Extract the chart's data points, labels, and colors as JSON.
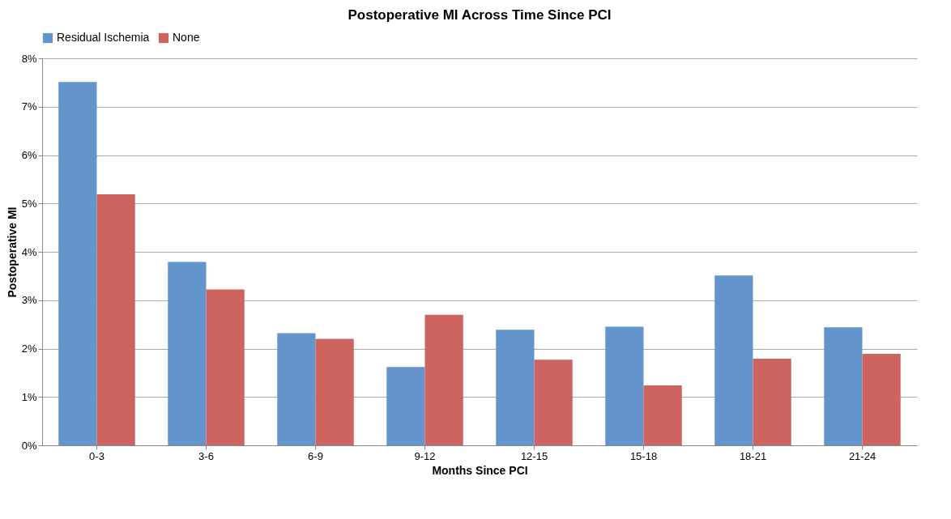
{
  "chart_data": {
    "type": "bar",
    "title": "Postoperative MI Across Time Since PCI",
    "xlabel": "Months Since PCI",
    "ylabel": "Postoperative MI",
    "categories": [
      "0-3",
      "3-6",
      "6-9",
      "9-12",
      "12-15",
      "15-18",
      "18-21",
      "21-24"
    ],
    "series": [
      {
        "name": "Residual Ischemia",
        "color": "#6394cc",
        "values": [
          7.51,
          3.79,
          2.32,
          1.62,
          2.39,
          2.45,
          3.51,
          2.44
        ]
      },
      {
        "name": "None",
        "color": "#cd6460",
        "values": [
          5.19,
          3.22,
          2.2,
          2.7,
          1.77,
          1.24,
          1.79,
          1.89
        ]
      }
    ],
    "ylim": [
      0,
      8
    ],
    "yticks": [
      {
        "value": 0,
        "label": "0%"
      },
      {
        "value": 1,
        "label": "1%"
      },
      {
        "value": 2,
        "label": "2%"
      },
      {
        "value": 3,
        "label": "3%"
      },
      {
        "value": 4,
        "label": "4%"
      },
      {
        "value": 5,
        "label": "5%"
      },
      {
        "value": 6,
        "label": "6%"
      },
      {
        "value": 7,
        "label": "7%"
      },
      {
        "value": 8,
        "label": "8%"
      }
    ],
    "grid": "y",
    "legend": "top"
  }
}
